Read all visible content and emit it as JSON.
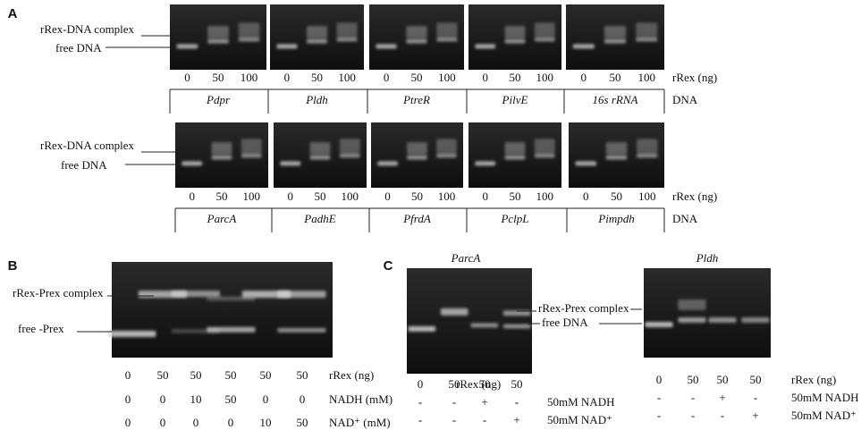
{
  "panel_a": {
    "label": "A",
    "rows": [
      {
        "complex_label": "rRex-DNA complex",
        "free_label": "free DNA",
        "dose_label": "rRex  (ng)",
        "dna_label": "DNA",
        "gels": [
          {
            "promoter": "Pdpr",
            "lanes": [
              "0",
              "50",
              "100"
            ]
          },
          {
            "promoter": "Pldh",
            "lanes": [
              "0",
              "50",
              "100"
            ]
          },
          {
            "promoter": "PtreR",
            "lanes": [
              "0",
              "50",
              "100"
            ]
          },
          {
            "promoter": "PilvE",
            "lanes": [
              "0",
              "50",
              "100"
            ]
          },
          {
            "promoter": "16s rRNA",
            "lanes": [
              "0",
              "50",
              "100"
            ]
          }
        ]
      },
      {
        "complex_label": "rRex-DNA complex",
        "free_label": "free DNA",
        "dose_label": "rRex  (ng)",
        "dna_label": "DNA",
        "gels": [
          {
            "promoter": "ParcA",
            "lanes": [
              "0",
              "50",
              "100"
            ]
          },
          {
            "promoter": "PadhE",
            "lanes": [
              "0",
              "50",
              "100"
            ]
          },
          {
            "promoter": "PfrdA",
            "lanes": [
              "0",
              "50",
              "100"
            ]
          },
          {
            "promoter": "PclpL",
            "lanes": [
              "0",
              "50",
              "100"
            ]
          },
          {
            "promoter": "Pimpdh",
            "lanes": [
              "0",
              "50",
              "100"
            ]
          }
        ]
      }
    ]
  },
  "panel_b": {
    "label": "B",
    "complex_label": "rRex-Prex complex",
    "free_label": "free -Prex",
    "rows": [
      {
        "values": [
          "0",
          "50",
          "50",
          "50",
          "50",
          "50"
        ],
        "label": "rRex (ng)"
      },
      {
        "values": [
          "0",
          "0",
          "10",
          "50",
          "0",
          "0"
        ],
        "label": "NADH     (mM)"
      },
      {
        "values": [
          "0",
          "0",
          "0",
          "0",
          "10",
          "50"
        ],
        "label": "NAD⁺  (mM)"
      }
    ]
  },
  "panel_c": {
    "label": "C",
    "complex_label": "rRex-Prex complex",
    "free_label": "free DNA",
    "gels": [
      {
        "title": "ParcA",
        "rows": [
          {
            "values": [
              "0",
              "50",
              "50",
              "50"
            ],
            "label": "rRex  (ng)"
          },
          {
            "values": [
              "-",
              "-",
              "+",
              "-"
            ],
            "label": "50mM NADH"
          },
          {
            "values": [
              "-",
              "-",
              "-",
              "+"
            ],
            "label": "50mM NAD⁺"
          }
        ]
      },
      {
        "title": "Pldh",
        "rows": [
          {
            "values": [
              "0",
              "50",
              "50",
              "50"
            ],
            "label": "rRex (ng)"
          },
          {
            "values": [
              "-",
              "-",
              "+",
              "-"
            ],
            "label": "50mM NADH"
          },
          {
            "values": [
              "-",
              "-",
              "-",
              "+"
            ],
            "label": "50mM NAD⁺"
          }
        ]
      }
    ]
  }
}
